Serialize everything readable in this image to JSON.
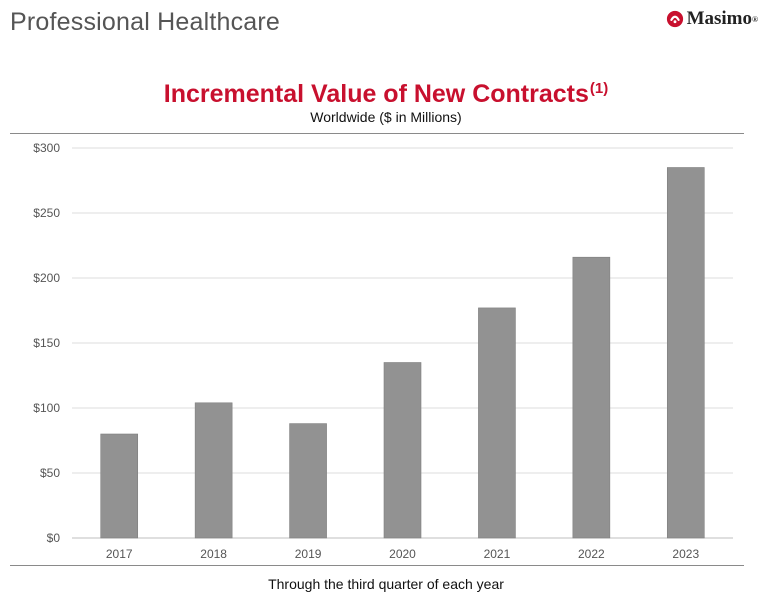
{
  "header": {
    "title": "Professional Healthcare"
  },
  "logo": {
    "text": "Masimo",
    "trademark": "®",
    "colors": {
      "mark": "#c8102e"
    }
  },
  "chart_data": {
    "type": "bar",
    "title": "Incremental Value of New Contracts",
    "title_note": "(1)",
    "subtitle": "Worldwide ($ in Millions)",
    "categories": [
      "2017",
      "2018",
      "2019",
      "2020",
      "2021",
      "2022",
      "2023"
    ],
    "values": [
      80,
      104,
      88,
      135,
      177,
      216,
      285
    ],
    "ylim": [
      0,
      300
    ],
    "yticks": [
      0,
      50,
      100,
      150,
      200,
      250,
      300
    ],
    "ytick_labels": [
      "$0",
      "$50",
      "$100",
      "$150",
      "$200",
      "$250",
      "$300"
    ],
    "xlabel": "",
    "ylabel": "",
    "grid": true,
    "bar_color": "#929292",
    "title_color": "#c8102e"
  },
  "footnote": "Through the third quarter of each year"
}
